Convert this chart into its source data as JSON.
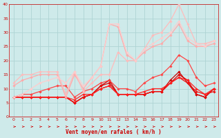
{
  "xlabel": "Vent moyen/en rafales ( km/h )",
  "bg_color": "#ceeaea",
  "grid_color": "#aed4d4",
  "ylim": [
    0,
    40
  ],
  "xlim": [
    -0.5,
    23.5
  ],
  "xticks": [
    0,
    1,
    2,
    3,
    4,
    5,
    6,
    7,
    8,
    9,
    10,
    11,
    12,
    13,
    14,
    15,
    16,
    17,
    18,
    19,
    20,
    21,
    22,
    23
  ],
  "yticks": [
    0,
    5,
    10,
    15,
    20,
    25,
    30,
    35,
    40
  ],
  "series": [
    {
      "x": [
        0,
        1,
        2,
        3,
        4,
        5,
        6,
        7,
        8,
        9,
        10,
        11,
        12,
        13,
        14,
        15,
        16,
        17,
        18,
        19,
        20,
        21,
        22,
        23
      ],
      "y": [
        7,
        7,
        7,
        7,
        7,
        7,
        7,
        5,
        7,
        8,
        11,
        13,
        8,
        8,
        8,
        8,
        9,
        9,
        13,
        16,
        12,
        8,
        7,
        10
      ],
      "color": "#cc0000",
      "lw": 0.9,
      "marker": "D",
      "ms": 1.8
    },
    {
      "x": [
        0,
        1,
        2,
        3,
        4,
        5,
        6,
        7,
        8,
        9,
        10,
        11,
        12,
        13,
        14,
        15,
        16,
        17,
        18,
        19,
        20,
        21,
        22,
        23
      ],
      "y": [
        7,
        7,
        7,
        7,
        7,
        7,
        7,
        5,
        7,
        8,
        11,
        12,
        8,
        8,
        8,
        8,
        9,
        9,
        12,
        15,
        13,
        8,
        7,
        10
      ],
      "color": "#dd0000",
      "lw": 0.9,
      "marker": "D",
      "ms": 1.8
    },
    {
      "x": [
        0,
        1,
        2,
        3,
        4,
        5,
        6,
        7,
        8,
        9,
        10,
        11,
        12,
        13,
        14,
        15,
        16,
        17,
        18,
        19,
        20,
        21,
        22,
        23
      ],
      "y": [
        7,
        7,
        7,
        7,
        7,
        7,
        7,
        5,
        7,
        8,
        10,
        11,
        8,
        8,
        8,
        8,
        9,
        9,
        12,
        14,
        12,
        9,
        8,
        9
      ],
      "color": "#ee1111",
      "lw": 0.9,
      "marker": "D",
      "ms": 1.8
    },
    {
      "x": [
        0,
        1,
        2,
        3,
        4,
        5,
        6,
        7,
        8,
        9,
        10,
        11,
        12,
        13,
        14,
        15,
        16,
        17,
        18,
        19,
        20,
        21,
        22,
        23
      ],
      "y": [
        7,
        7,
        7,
        7,
        7,
        7,
        7,
        6,
        8,
        8,
        10,
        11,
        8,
        8,
        8,
        9,
        10,
        10,
        12,
        14,
        13,
        10,
        8,
        10
      ],
      "color": "#ff2222",
      "lw": 0.9,
      "marker": "D",
      "ms": 1.8
    },
    {
      "x": [
        0,
        1,
        2,
        3,
        4,
        5,
        6,
        7,
        8,
        9,
        10,
        11,
        12,
        13,
        14,
        15,
        16,
        17,
        18,
        19,
        20,
        21,
        22,
        23
      ],
      "y": [
        7,
        8,
        8,
        9,
        10,
        11,
        11,
        7,
        9,
        10,
        12,
        13,
        10,
        10,
        9,
        12,
        14,
        15,
        18,
        22,
        20,
        14,
        11,
        12
      ],
      "color": "#ff4444",
      "lw": 0.9,
      "marker": "D",
      "ms": 1.8
    },
    {
      "x": [
        0,
        1,
        2,
        3,
        4,
        5,
        6,
        7,
        8,
        9,
        10,
        11,
        12,
        13,
        14,
        15,
        16,
        17,
        18,
        19,
        20,
        21,
        22,
        23
      ],
      "y": [
        11,
        13,
        14,
        15,
        15,
        15,
        7,
        15,
        10,
        14,
        18,
        33,
        32,
        22,
        20,
        23,
        25,
        26,
        29,
        33,
        27,
        25,
        25,
        26
      ],
      "color": "#ffaaaa",
      "lw": 0.9,
      "marker": "D",
      "ms": 1.8
    },
    {
      "x": [
        0,
        1,
        2,
        3,
        4,
        5,
        6,
        7,
        8,
        9,
        10,
        11,
        12,
        13,
        14,
        15,
        16,
        17,
        18,
        19,
        20,
        21,
        22,
        23
      ],
      "y": [
        12,
        15,
        15,
        16,
        16,
        16,
        8,
        16,
        9,
        12,
        15,
        15,
        23,
        20,
        20,
        24,
        29,
        30,
        34,
        40,
        33,
        26,
        26,
        27
      ],
      "color": "#ffbbbb",
      "lw": 0.9,
      "marker": "D",
      "ms": 1.8
    },
    {
      "x": [
        0,
        1,
        2,
        3,
        4,
        5,
        6,
        7,
        8,
        9,
        10,
        11,
        12,
        13,
        14,
        15,
        16,
        17,
        18,
        19,
        20,
        21,
        22,
        23
      ],
      "y": [
        7,
        8,
        10,
        12,
        13,
        14,
        12,
        16,
        11,
        14,
        18,
        33,
        33,
        23,
        20,
        24,
        26,
        28,
        30,
        34,
        28,
        26,
        25,
        27
      ],
      "color": "#ffcccc",
      "lw": 0.9,
      "marker": "D",
      "ms": 1.8
    }
  ],
  "arrow_color": "#cc0000",
  "tick_color": "#cc0000",
  "spine_color": "#cc0000",
  "xlabel_color": "#cc0000",
  "xlabel_fontsize": 5.5,
  "tick_fontsize": 4.5
}
